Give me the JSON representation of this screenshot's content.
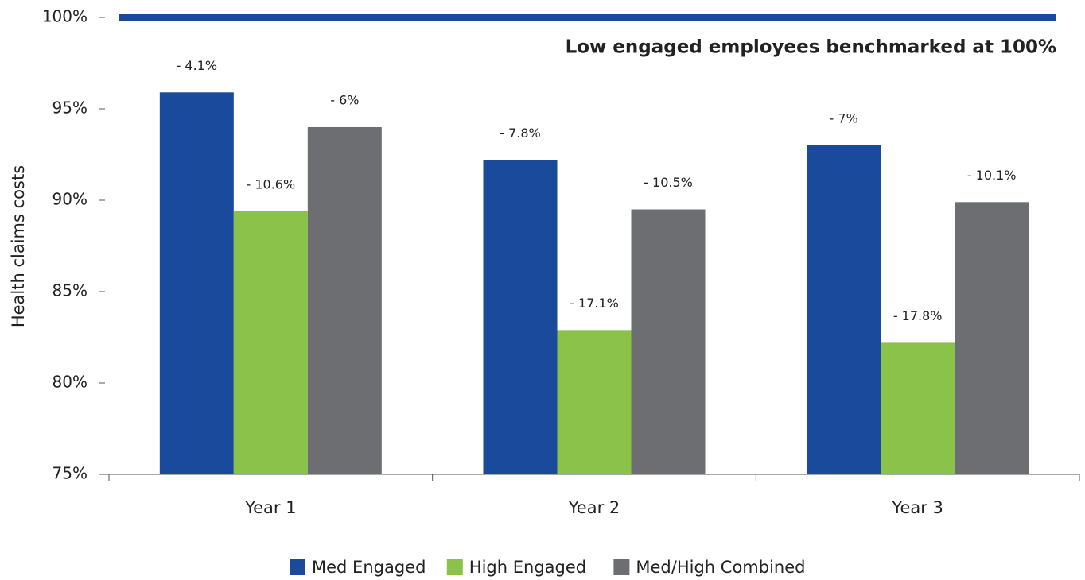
{
  "chart_data": {
    "type": "bar",
    "y_label": "Health claims costs",
    "categories": [
      "Year 1",
      "Year 2",
      "Year 3"
    ],
    "series": [
      {
        "name": "Med Engaged",
        "color": "#1a4a9b",
        "values": [
          95.9,
          92.2,
          93.0
        ],
        "value_labels": [
          "- 4.1%",
          "- 7.8%",
          "- 7%"
        ]
      },
      {
        "name": "High Engaged",
        "color": "#8bc34a",
        "values": [
          89.4,
          82.9,
          82.2
        ],
        "value_labels": [
          "- 10.6%",
          "- 17.1%",
          "- 17.8%"
        ]
      },
      {
        "name": "Med/High Combined",
        "color": "#6d6e71",
        "values": [
          94.0,
          89.5,
          89.9
        ],
        "value_labels": [
          "- 6%",
          "- 10.5%",
          "- 10.1%"
        ]
      }
    ],
    "ylim": [
      75,
      100
    ],
    "yticks": [
      {
        "value": 75,
        "label": "75%"
      },
      {
        "value": 80,
        "label": "80%"
      },
      {
        "value": 85,
        "label": "85%"
      },
      {
        "value": 90,
        "label": "90%"
      },
      {
        "value": 95,
        "label": "95%"
      },
      {
        "value": 100,
        "label": "100%"
      }
    ],
    "benchmark": {
      "value": 100,
      "label": "Low engaged employees benchmarked at 100%",
      "color": "#1a4a9b"
    },
    "legend": "bottom"
  }
}
